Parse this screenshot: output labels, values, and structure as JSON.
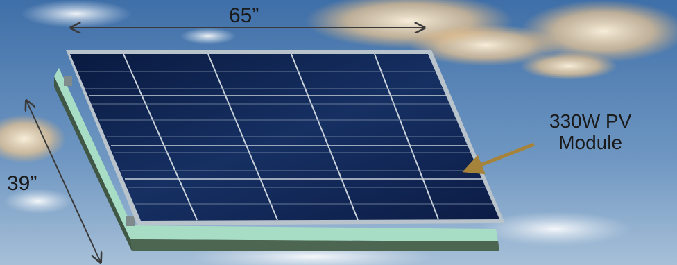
{
  "dimensions": {
    "width_label": "65”",
    "height_label": "39”"
  },
  "module_label": {
    "line1": "330W PV",
    "line2": "Module"
  },
  "colors": {
    "sky_top": "#4a79b0",
    "sky_bottom": "#8fb0cf",
    "cloud": "#f2d3a6",
    "panel_cell": "#0e1f4a",
    "frame": "#b9c3cc",
    "base_top": "#a8ddc5",
    "base_side": "#3f5744",
    "arrow_gold": "#a6833a",
    "dimension_line": "#3a3a3a"
  },
  "panel_grid": {
    "columns": 5,
    "rows": 5
  }
}
